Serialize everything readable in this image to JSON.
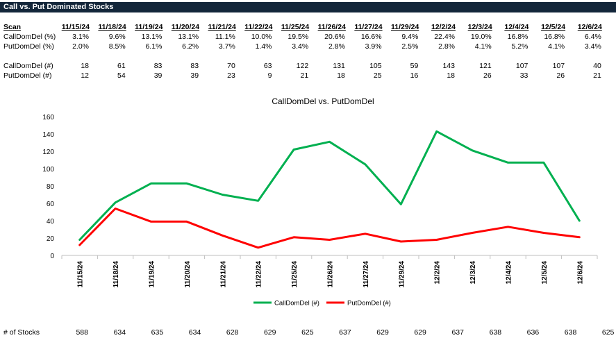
{
  "banner": {
    "title": "Call vs. Put Dominated Stocks"
  },
  "table": {
    "scan_label": "Scan",
    "dates": [
      "11/15/24",
      "11/18/24",
      "11/19/24",
      "11/20/24",
      "11/21/24",
      "11/22/24",
      "11/25/24",
      "11/26/24",
      "11/27/24",
      "11/29/24",
      "12/2/24",
      "12/3/24",
      "12/4/24",
      "12/5/24",
      "12/6/24"
    ],
    "rows": [
      {
        "label": "CallDomDel (%)",
        "values": [
          "3.1%",
          "9.6%",
          "13.1%",
          "13.1%",
          "11.1%",
          "10.0%",
          "19.5%",
          "20.6%",
          "16.6%",
          "9.4%",
          "22.4%",
          "19.0%",
          "16.8%",
          "16.8%",
          "6.4%"
        ]
      },
      {
        "label": "PutDomDel (%)",
        "values": [
          "2.0%",
          "8.5%",
          "6.1%",
          "6.2%",
          "3.7%",
          "1.4%",
          "3.4%",
          "2.8%",
          "3.9%",
          "2.5%",
          "2.8%",
          "4.1%",
          "5.2%",
          "4.1%",
          "3.4%"
        ]
      },
      {
        "label": "CallDomDel (#)",
        "values": [
          "18",
          "61",
          "83",
          "83",
          "70",
          "63",
          "122",
          "131",
          "105",
          "59",
          "143",
          "121",
          "107",
          "107",
          "40"
        ]
      },
      {
        "label": "PutDomDel (#)",
        "values": [
          "12",
          "54",
          "39",
          "39",
          "23",
          "9",
          "21",
          "18",
          "25",
          "16",
          "18",
          "26",
          "33",
          "26",
          "21"
        ]
      }
    ]
  },
  "chart_data": {
    "type": "line",
    "title": "CallDomDel vs. PutDomDel",
    "categories": [
      "11/15/24",
      "11/18/24",
      "11/19/24",
      "11/20/24",
      "11/21/24",
      "11/22/24",
      "11/25/24",
      "11/26/24",
      "11/27/24",
      "11/29/24",
      "12/2/24",
      "12/3/24",
      "12/4/24",
      "12/5/24",
      "12/6/24"
    ],
    "series": [
      {
        "name": "CallDomDel (#)",
        "color": "#00b050",
        "values": [
          18,
          61,
          83,
          83,
          70,
          63,
          122,
          131,
          105,
          59,
          143,
          121,
          107,
          107,
          40
        ]
      },
      {
        "name": "PutDomDel (#)",
        "color": "#ff0000",
        "values": [
          12,
          54,
          39,
          39,
          23,
          9,
          21,
          18,
          25,
          16,
          18,
          26,
          33,
          26,
          21
        ]
      }
    ],
    "ylim": [
      0,
      160
    ],
    "yticks": [
      0,
      20,
      40,
      60,
      80,
      100,
      120,
      140,
      160
    ],
    "grid": false,
    "legend": "bottom"
  },
  "footer": {
    "label": "# of Stocks",
    "values": [
      "588",
      "634",
      "635",
      "634",
      "628",
      "629",
      "625",
      "637",
      "629",
      "629",
      "637",
      "638",
      "636",
      "638",
      "625"
    ]
  }
}
